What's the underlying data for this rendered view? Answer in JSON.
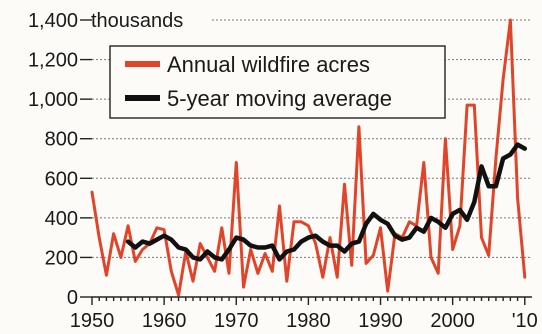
{
  "chart_data": {
    "type": "line",
    "unit_label": "thousands",
    "y_ticks": [
      "0",
      "200",
      "400",
      "600",
      "800",
      "1,000",
      "1,200",
      "1,400"
    ],
    "x_ticks": [
      "1950",
      "1960",
      "1970",
      "1980",
      "1990",
      "2000",
      "'10"
    ],
    "ylim": [
      0,
      1400
    ],
    "xlim": [
      1950,
      2011
    ],
    "grid": "horizontal dotted",
    "legend_position": "top-left",
    "series": [
      {
        "name": "Annual wildfire acres",
        "color": "#e0452a",
        "x": [
          1950,
          1951,
          1952,
          1953,
          1954,
          1955,
          1956,
          1957,
          1958,
          1959,
          1960,
          1961,
          1962,
          1963,
          1964,
          1965,
          1966,
          1967,
          1968,
          1969,
          1970,
          1971,
          1972,
          1973,
          1974,
          1975,
          1976,
          1977,
          1978,
          1979,
          1980,
          1981,
          1982,
          1983,
          1984,
          1985,
          1986,
          1987,
          1988,
          1989,
          1990,
          1991,
          1992,
          1993,
          1994,
          1995,
          1996,
          1997,
          1998,
          1999,
          2000,
          2001,
          2002,
          2003,
          2004,
          2005,
          2006,
          2007,
          2008,
          2009,
          2010
        ],
        "y": [
          530,
          300,
          110,
          320,
          200,
          360,
          180,
          240,
          270,
          350,
          340,
          130,
          10,
          230,
          80,
          270,
          200,
          130,
          350,
          120,
          680,
          50,
          240,
          120,
          220,
          130,
          460,
          80,
          380,
          380,
          360,
          270,
          100,
          300,
          100,
          570,
          160,
          860,
          170,
          210,
          350,
          30,
          320,
          300,
          380,
          360,
          680,
          200,
          120,
          800,
          240,
          360,
          970,
          970,
          300,
          210,
          700,
          1100,
          1400,
          500,
          100
        ]
      },
      {
        "name": "5-year moving average",
        "color": "#111111",
        "x": [
          1955,
          1956,
          1957,
          1958,
          1959,
          1960,
          1961,
          1962,
          1963,
          1964,
          1965,
          1966,
          1967,
          1968,
          1969,
          1970,
          1971,
          1972,
          1973,
          1974,
          1975,
          1976,
          1977,
          1978,
          1979,
          1980,
          1981,
          1982,
          1983,
          1984,
          1985,
          1986,
          1987,
          1988,
          1989,
          1990,
          1991,
          1992,
          1993,
          1994,
          1995,
          1996,
          1997,
          1998,
          1999,
          2000,
          2001,
          2002,
          2003,
          2004,
          2005,
          2006,
          2007,
          2008,
          2009,
          2010
        ],
        "y": [
          280,
          250,
          280,
          270,
          290,
          310,
          290,
          250,
          240,
          200,
          190,
          230,
          200,
          190,
          240,
          300,
          290,
          260,
          250,
          250,
          260,
          190,
          230,
          240,
          280,
          300,
          310,
          280,
          260,
          260,
          230,
          270,
          280,
          370,
          420,
          390,
          370,
          310,
          290,
          300,
          350,
          330,
          400,
          380,
          350,
          420,
          440,
          390,
          480,
          660,
          560,
          560,
          700,
          720,
          770,
          750
        ]
      }
    ]
  }
}
